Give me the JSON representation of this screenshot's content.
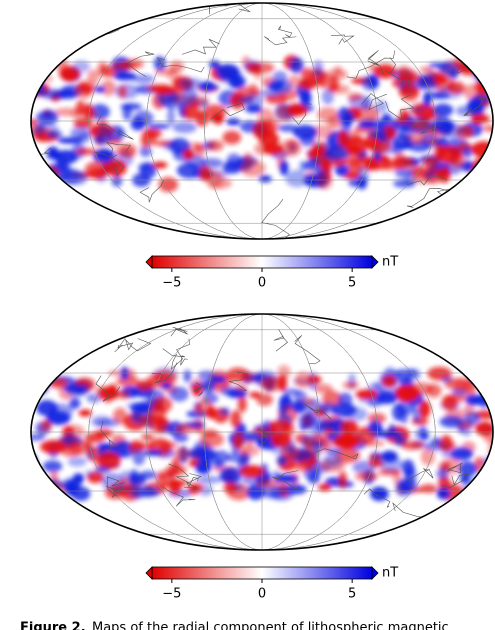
{
  "figures": [
    {
      "colorbar": {
        "lim": [
          -6.1,
          6.1
        ],
        "ticks": [
          {
            "value": -5,
            "label": "−5"
          },
          0,
          5
        ],
        "unit": "nT"
      }
    },
    {
      "colorbar": {
        "lim": [
          -6.1,
          6.1
        ],
        "ticks": [
          {
            "value": -5,
            "label": "−5"
          },
          0,
          5
        ],
        "unit": "nT"
      }
    }
  ],
  "caption": {
    "label": "Figure 2.",
    "text": "Maps of the radial component of lithospheric magnetic"
  }
}
